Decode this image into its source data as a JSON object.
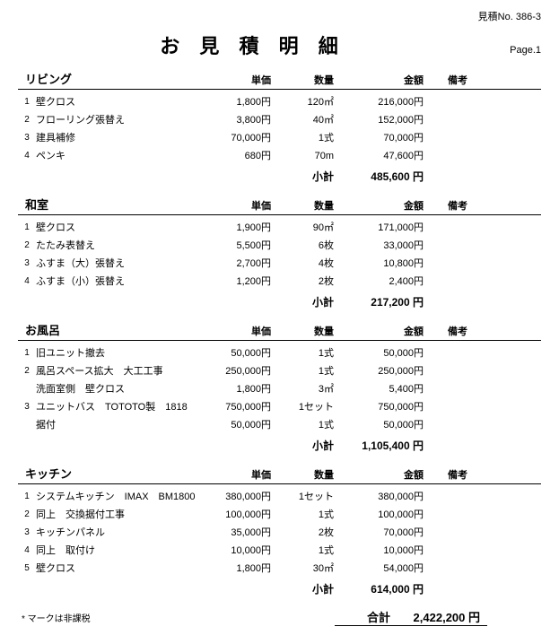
{
  "doc_no_label": "見積No.",
  "doc_no": "386-3",
  "title": "お 見 積 明 細",
  "page_label": "Page.1",
  "headers": {
    "price": "単価",
    "qty": "数量",
    "amt": "金額",
    "note": "備考"
  },
  "sections": [
    {
      "name": "リビング",
      "rows": [
        {
          "num": "1",
          "name": "壁クロス",
          "price": "1,800円",
          "qty": "120㎡",
          "amt": "216,000円"
        },
        {
          "num": "2",
          "name": "フローリング張替え",
          "price": "3,800円",
          "qty": "40㎡",
          "amt": "152,000円"
        },
        {
          "num": "3",
          "name": "建具補修",
          "price": "70,000円",
          "qty": "1式",
          "amt": "70,000円"
        },
        {
          "num": "4",
          "name": "ペンキ",
          "price": "680円",
          "qty": "70m",
          "amt": "47,600円"
        }
      ],
      "subtotal_label": "小計",
      "subtotal": "485,600 円"
    },
    {
      "name": "和室",
      "rows": [
        {
          "num": "1",
          "name": "壁クロス",
          "price": "1,900円",
          "qty": "90㎡",
          "amt": "171,000円"
        },
        {
          "num": "2",
          "name": "たたみ表替え",
          "price": "5,500円",
          "qty": "6枚",
          "amt": "33,000円"
        },
        {
          "num": "3",
          "name": "ふすま（大）張替え",
          "price": "2,700円",
          "qty": "4枚",
          "amt": "10,800円"
        },
        {
          "num": "4",
          "name": "ふすま（小）張替え",
          "price": "1,200円",
          "qty": "2枚",
          "amt": "2,400円"
        }
      ],
      "subtotal_label": "小計",
      "subtotal": "217,200 円"
    },
    {
      "name": "お風呂",
      "rows": [
        {
          "num": "1",
          "name": "旧ユニット撤去",
          "price": "50,000円",
          "qty": "1式",
          "amt": "50,000円"
        },
        {
          "num": "2",
          "name": "風呂スペース拡大　大工工事",
          "price": "250,000円",
          "qty": "1式",
          "amt": "250,000円"
        },
        {
          "num": "",
          "name": "洗面室側　壁クロス",
          "price": "1,800円",
          "qty": "3㎡",
          "amt": "5,400円"
        },
        {
          "num": "3",
          "name": "ユニットバス　TOTOTO製　1818",
          "price": "750,000円",
          "qty": "1セット",
          "amt": "750,000円"
        },
        {
          "num": "",
          "name": "据付",
          "price": "50,000円",
          "qty": "1式",
          "amt": "50,000円"
        }
      ],
      "subtotal_label": "小計",
      "subtotal": "1,105,400 円"
    },
    {
      "name": "キッチン",
      "rows": [
        {
          "num": "1",
          "name": "システムキッチン　IMAX　BM1800",
          "price": "380,000円",
          "qty": "1セット",
          "amt": "380,000円"
        },
        {
          "num": "2",
          "name": "同上　交換据付工事",
          "price": "100,000円",
          "qty": "1式",
          "amt": "100,000円"
        },
        {
          "num": "3",
          "name": "キッチンパネル",
          "price": "35,000円",
          "qty": "2枚",
          "amt": "70,000円"
        },
        {
          "num": "4",
          "name": "同上　取付け",
          "price": "10,000円",
          "qty": "1式",
          "amt": "10,000円"
        },
        {
          "num": "5",
          "name": "壁クロス",
          "price": "1,800円",
          "qty": "30㎡",
          "amt": "54,000円"
        }
      ],
      "subtotal_label": "小計",
      "subtotal": "614,000 円"
    }
  ],
  "footnote": "* マークは非課税",
  "grand_label": "合計",
  "grand_total": "2,422,200 円"
}
